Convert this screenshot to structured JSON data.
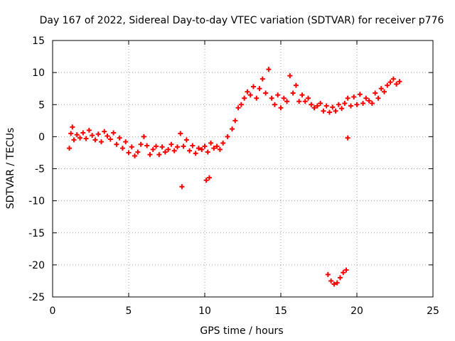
{
  "chart_data": {
    "type": "scatter",
    "title": "Day 167 of 2022, Sidereal Day-to-day VTEC variation (SDTVAR) for receiver p776",
    "xlabel": "GPS time / hours",
    "ylabel": "SDTVAR / TECUs",
    "xlim": [
      0,
      25
    ],
    "ylim": [
      -25,
      15
    ],
    "xticks": [
      0,
      5,
      10,
      15,
      20,
      25
    ],
    "yticks": [
      -25,
      -20,
      -15,
      -10,
      -5,
      0,
      5,
      10,
      15
    ],
    "grid": true,
    "legend": "none",
    "point_color": "#ff0000",
    "series": [
      {
        "name": "SDTVAR",
        "points": [
          [
            1.1,
            -1.8
          ],
          [
            1.2,
            0.5
          ],
          [
            1.3,
            1.5
          ],
          [
            1.4,
            -0.5
          ],
          [
            1.6,
            0.3
          ],
          [
            1.8,
            -0.2
          ],
          [
            2.0,
            0.6
          ],
          [
            2.2,
            -0.3
          ],
          [
            2.4,
            1.0
          ],
          [
            2.6,
            0.2
          ],
          [
            2.8,
            -0.5
          ],
          [
            3.0,
            0.4
          ],
          [
            3.2,
            -0.8
          ],
          [
            3.4,
            0.8
          ],
          [
            3.6,
            0.1
          ],
          [
            3.8,
            -0.4
          ],
          [
            4.0,
            0.6
          ],
          [
            4.2,
            -1.2
          ],
          [
            4.4,
            -0.2
          ],
          [
            4.6,
            -1.8
          ],
          [
            4.8,
            -0.8
          ],
          [
            5.0,
            -2.5
          ],
          [
            5.2,
            -1.6
          ],
          [
            5.4,
            -3.0
          ],
          [
            5.6,
            -2.4
          ],
          [
            5.8,
            -1.2
          ],
          [
            6.0,
            0.0
          ],
          [
            6.2,
            -1.4
          ],
          [
            6.4,
            -2.8
          ],
          [
            6.6,
            -2.0
          ],
          [
            6.8,
            -1.5
          ],
          [
            7.0,
            -2.8
          ],
          [
            7.2,
            -1.6
          ],
          [
            7.4,
            -2.4
          ],
          [
            7.6,
            -2.0
          ],
          [
            7.8,
            -1.2
          ],
          [
            8.0,
            -2.2
          ],
          [
            8.2,
            -1.6
          ],
          [
            8.4,
            0.5
          ],
          [
            8.6,
            -1.5
          ],
          [
            8.8,
            -0.5
          ],
          [
            9.0,
            -2.2
          ],
          [
            9.2,
            -1.4
          ],
          [
            9.4,
            -2.6
          ],
          [
            9.6,
            -1.8
          ],
          [
            9.8,
            -2.0
          ],
          [
            10.0,
            -1.5
          ],
          [
            10.2,
            -2.4
          ],
          [
            10.4,
            -1.0
          ],
          [
            10.6,
            -1.8
          ],
          [
            10.8,
            -1.5
          ],
          [
            11.0,
            -2.0
          ],
          [
            11.2,
            -1.0
          ],
          [
            11.5,
            0.0
          ],
          [
            11.8,
            1.2
          ],
          [
            12.0,
            2.5
          ],
          [
            12.2,
            4.5
          ],
          [
            12.4,
            5.0
          ],
          [
            12.6,
            6.0
          ],
          [
            12.8,
            7.0
          ],
          [
            13.0,
            6.5
          ],
          [
            13.2,
            7.8
          ],
          [
            13.4,
            6.0
          ],
          [
            13.6,
            7.5
          ],
          [
            13.8,
            9.0
          ],
          [
            14.0,
            6.8
          ],
          [
            14.2,
            10.5
          ],
          [
            14.4,
            6.0
          ],
          [
            14.6,
            5.0
          ],
          [
            14.8,
            6.5
          ],
          [
            15.0,
            4.5
          ],
          [
            15.2,
            6.0
          ],
          [
            15.4,
            5.5
          ],
          [
            15.6,
            9.5
          ],
          [
            15.8,
            6.8
          ],
          [
            16.0,
            8.0
          ],
          [
            16.2,
            5.5
          ],
          [
            16.4,
            6.5
          ],
          [
            16.6,
            5.5
          ],
          [
            16.8,
            6.0
          ],
          [
            17.0,
            5.0
          ],
          [
            17.2,
            4.5
          ],
          [
            17.4,
            4.8
          ],
          [
            17.6,
            5.2
          ],
          [
            17.8,
            4.0
          ],
          [
            18.0,
            4.8
          ],
          [
            18.2,
            3.8
          ],
          [
            18.4,
            4.6
          ],
          [
            18.6,
            4.0
          ],
          [
            18.8,
            5.0
          ],
          [
            19.0,
            4.4
          ],
          [
            19.2,
            5.2
          ],
          [
            19.4,
            6.0
          ],
          [
            19.6,
            4.8
          ],
          [
            19.8,
            6.2
          ],
          [
            20.0,
            5.0
          ],
          [
            20.2,
            6.6
          ],
          [
            20.4,
            5.2
          ],
          [
            20.6,
            6.0
          ],
          [
            20.8,
            5.6
          ],
          [
            21.0,
            5.2
          ],
          [
            21.2,
            6.8
          ],
          [
            21.4,
            6.0
          ],
          [
            21.6,
            7.5
          ],
          [
            21.8,
            7.0
          ],
          [
            22.0,
            8.0
          ],
          [
            22.2,
            8.5
          ],
          [
            22.4,
            9.0
          ],
          [
            22.6,
            8.2
          ],
          [
            22.8,
            8.6
          ],
          [
            8.5,
            -7.8
          ],
          [
            10.1,
            -6.8
          ],
          [
            10.3,
            -6.4
          ],
          [
            18.1,
            -21.5
          ],
          [
            18.3,
            -22.5
          ],
          [
            18.5,
            -23.0
          ],
          [
            18.7,
            -22.8
          ],
          [
            18.9,
            -22.0
          ],
          [
            19.1,
            -21.2
          ],
          [
            19.3,
            -20.8
          ],
          [
            19.4,
            -0.2
          ]
        ]
      }
    ]
  }
}
